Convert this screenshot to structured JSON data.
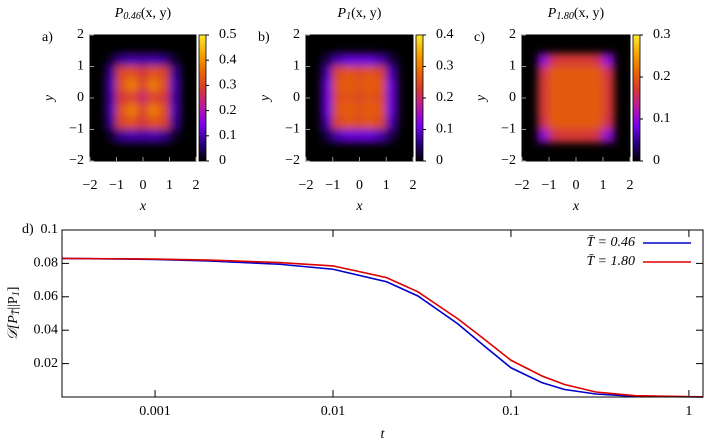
{
  "chart_data": [
    {
      "type": "heatmap",
      "panel": "a)",
      "title": [
        "P",
        "0.46",
        "(x, y)"
      ],
      "xlabel": "x",
      "ylabel": "y",
      "xlim": [
        -2,
        2
      ],
      "ylim": [
        -2,
        2
      ],
      "xticks": [
        {
          "value": -2,
          "label": "−2"
        },
        {
          "value": -1,
          "label": "−1"
        },
        0,
        1,
        2
      ],
      "yticks": [
        {
          "value": -2,
          "label": "−2"
        },
        {
          "value": -1,
          "label": "−1"
        },
        0,
        1,
        2
      ],
      "grid_x": [
        -1.2,
        -0.8,
        -0.4,
        0,
        0.4,
        0.8,
        1.2
      ],
      "grid_y": [
        1.2,
        0.8,
        0.4,
        0,
        -0.4,
        -0.8,
        -1.2
      ],
      "z": [
        [
          0.02,
          0.08,
          0.1,
          0.09,
          0.1,
          0.08,
          0.02
        ],
        [
          0.08,
          0.3,
          0.32,
          0.28,
          0.32,
          0.3,
          0.08
        ],
        [
          0.1,
          0.32,
          0.38,
          0.3,
          0.38,
          0.32,
          0.1
        ],
        [
          0.09,
          0.28,
          0.3,
          0.25,
          0.3,
          0.28,
          0.09
        ],
        [
          0.1,
          0.32,
          0.38,
          0.3,
          0.38,
          0.32,
          0.1
        ],
        [
          0.08,
          0.3,
          0.32,
          0.28,
          0.32,
          0.3,
          0.08
        ],
        [
          0.02,
          0.08,
          0.1,
          0.09,
          0.1,
          0.08,
          0.02
        ]
      ],
      "clim": [
        0,
        0.5
      ],
      "cticks": [
        0,
        0.1,
        0.2,
        0.3,
        0.4,
        0.5
      ],
      "colormap": [
        "#000000",
        "#2a0080",
        "#7a00f0",
        "#b81aa0",
        "#d83a30",
        "#e86a00",
        "#f4a800",
        "#ffe830"
      ]
    },
    {
      "type": "heatmap",
      "panel": "b)",
      "title": [
        "P",
        "1",
        "(x, y)"
      ],
      "xlabel": "x",
      "ylabel": "y",
      "xlim": [
        -2,
        2
      ],
      "ylim": [
        -2,
        2
      ],
      "xticks": [
        {
          "value": -2,
          "label": "−2"
        },
        {
          "value": -1,
          "label": "−1"
        },
        0,
        1,
        2
      ],
      "yticks": [
        {
          "value": -2,
          "label": "−2"
        },
        {
          "value": -1,
          "label": "−1"
        },
        0,
        1,
        2
      ],
      "grid_x": [
        -1.2,
        -0.8,
        -0.4,
        0,
        0.4,
        0.8,
        1.2
      ],
      "grid_y": [
        1.2,
        0.8,
        0.4,
        0,
        -0.4,
        -0.8,
        -1.2
      ],
      "z": [
        [
          0.03,
          0.08,
          0.1,
          0.1,
          0.1,
          0.08,
          0.03
        ],
        [
          0.08,
          0.24,
          0.26,
          0.25,
          0.26,
          0.24,
          0.08
        ],
        [
          0.1,
          0.26,
          0.27,
          0.26,
          0.27,
          0.26,
          0.1
        ],
        [
          0.1,
          0.25,
          0.26,
          0.25,
          0.26,
          0.25,
          0.1
        ],
        [
          0.1,
          0.26,
          0.27,
          0.26,
          0.27,
          0.26,
          0.1
        ],
        [
          0.08,
          0.24,
          0.26,
          0.25,
          0.26,
          0.24,
          0.08
        ],
        [
          0.03,
          0.08,
          0.1,
          0.1,
          0.1,
          0.08,
          0.03
        ]
      ],
      "clim": [
        0,
        0.4
      ],
      "cticks": [
        0,
        0.1,
        0.2,
        0.3,
        0.4
      ],
      "colormap": [
        "#000000",
        "#2a0080",
        "#7a00f0",
        "#b81aa0",
        "#d83a30",
        "#e86a00",
        "#f4a800",
        "#ffe830"
      ]
    },
    {
      "type": "heatmap",
      "panel": "c)",
      "title": [
        "P",
        "1.80",
        "(x, y)"
      ],
      "xlabel": "x",
      "ylabel": "y",
      "xlim": [
        -2,
        2
      ],
      "ylim": [
        -2,
        2
      ],
      "xticks": [
        {
          "value": -2,
          "label": "−2"
        },
        {
          "value": -1,
          "label": "−1"
        },
        0,
        1,
        2
      ],
      "yticks": [
        {
          "value": -2,
          "label": "−2"
        },
        {
          "value": -1,
          "label": "−1"
        },
        0,
        1,
        2
      ],
      "grid_x": [
        -1.2,
        -0.8,
        -0.4,
        0,
        0.4,
        0.8,
        1.2
      ],
      "grid_y": [
        1.2,
        0.8,
        0.4,
        0,
        -0.4,
        -0.8,
        -1.2
      ],
      "z": [
        [
          0.1,
          0.16,
          0.17,
          0.17,
          0.17,
          0.16,
          0.1
        ],
        [
          0.16,
          0.2,
          0.2,
          0.2,
          0.2,
          0.2,
          0.16
        ],
        [
          0.17,
          0.2,
          0.2,
          0.2,
          0.2,
          0.2,
          0.17
        ],
        [
          0.17,
          0.2,
          0.2,
          0.2,
          0.2,
          0.2,
          0.17
        ],
        [
          0.17,
          0.2,
          0.2,
          0.2,
          0.2,
          0.2,
          0.17
        ],
        [
          0.16,
          0.2,
          0.2,
          0.2,
          0.2,
          0.2,
          0.16
        ],
        [
          0.1,
          0.16,
          0.17,
          0.17,
          0.17,
          0.16,
          0.1
        ]
      ],
      "clim": [
        0,
        0.3
      ],
      "cticks": [
        0,
        0.1,
        0.2,
        0.3
      ],
      "colormap": [
        "#000000",
        "#2a0080",
        "#7a00f0",
        "#b81aa0",
        "#d83a30",
        "#e86a00",
        "#f4a800",
        "#ffe830"
      ]
    },
    {
      "type": "line",
      "panel": "d)",
      "xlabel": "t",
      "ylabel": [
        "𝒟[P",
        "T̄",
        "||P",
        "1",
        "]"
      ],
      "log_x": true,
      "legend": "upper right",
      "x": [
        0.0003,
        0.001,
        0.002,
        0.005,
        0.01,
        0.02,
        0.03,
        0.05,
        0.07,
        0.1,
        0.15,
        0.2,
        0.3,
        0.5,
        1,
        1.2
      ],
      "xlim": [
        0.0003,
        1.2
      ],
      "xticks": [
        0.001,
        0.01,
        0.1,
        1
      ],
      "ylim": [
        0,
        0.1
      ],
      "yticks": [
        0.02,
        0.04,
        0.06,
        0.08,
        0.1
      ],
      "series": [
        {
          "name": "T̄ = 0.46",
          "color": "#0000cc",
          "values": [
            0.083,
            0.0824,
            0.0815,
            0.0795,
            0.0765,
            0.069,
            0.0605,
            0.044,
            0.031,
            0.0175,
            0.0085,
            0.0045,
            0.0018,
            0.0004,
            0.0001,
            0
          ]
        },
        {
          "name": "T̄ = 1.80",
          "color": "#dd0000",
          "values": [
            0.083,
            0.0826,
            0.082,
            0.0805,
            0.0785,
            0.0715,
            0.063,
            0.047,
            0.035,
            0.022,
            0.0125,
            0.0075,
            0.003,
            0.0008,
            0.0002,
            0.0001
          ]
        }
      ]
    }
  ]
}
